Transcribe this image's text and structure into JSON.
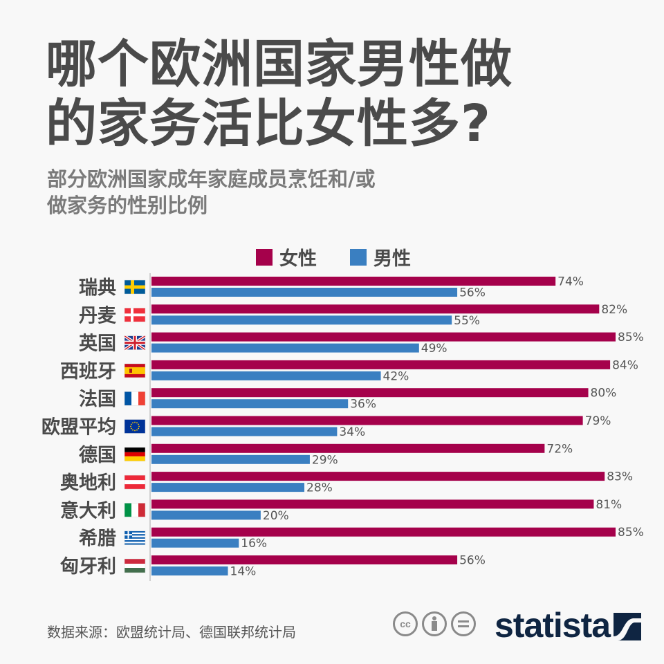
{
  "title_lines": [
    "哪个欧洲国家男性做",
    "的家务活比女性多?"
  ],
  "subtitle_lines": [
    "部分欧洲国家成年家庭成员烹饪和/或",
    "做家务的性别比例"
  ],
  "source": "数据来源：欧盟统计局、德国联邦统计局",
  "brand": "statista",
  "colors": {
    "female": "#a5014b",
    "male": "#3a7fc1",
    "text": "#4a4a4a",
    "background": "#f8f8f8"
  },
  "chart_data": {
    "type": "bar",
    "orientation": "horizontal",
    "categories": [
      "瑞典",
      "丹麦",
      "英国",
      "西班牙",
      "法国",
      "欧盟平均",
      "德国",
      "奥地利",
      "意大利",
      "希腊",
      "匈牙利"
    ],
    "flags": [
      "sweden-flag",
      "denmark-flag",
      "uk-flag",
      "spain-flag",
      "france-flag",
      "eu-flag",
      "germany-flag",
      "austria-flag",
      "italy-flag",
      "greece-flag",
      "hungary-flag"
    ],
    "series": [
      {
        "name": "女性",
        "color": "#a5014b",
        "values": [
          74,
          82,
          85,
          84,
          80,
          79,
          72,
          83,
          81,
          85,
          56
        ]
      },
      {
        "name": "男性",
        "color": "#3a7fc1",
        "values": [
          56,
          55,
          49,
          42,
          36,
          34,
          29,
          28,
          20,
          16,
          14
        ]
      }
    ],
    "value_suffix": "%",
    "xlim": [
      0,
      85
    ],
    "grid": false,
    "legend_placement": "top"
  }
}
